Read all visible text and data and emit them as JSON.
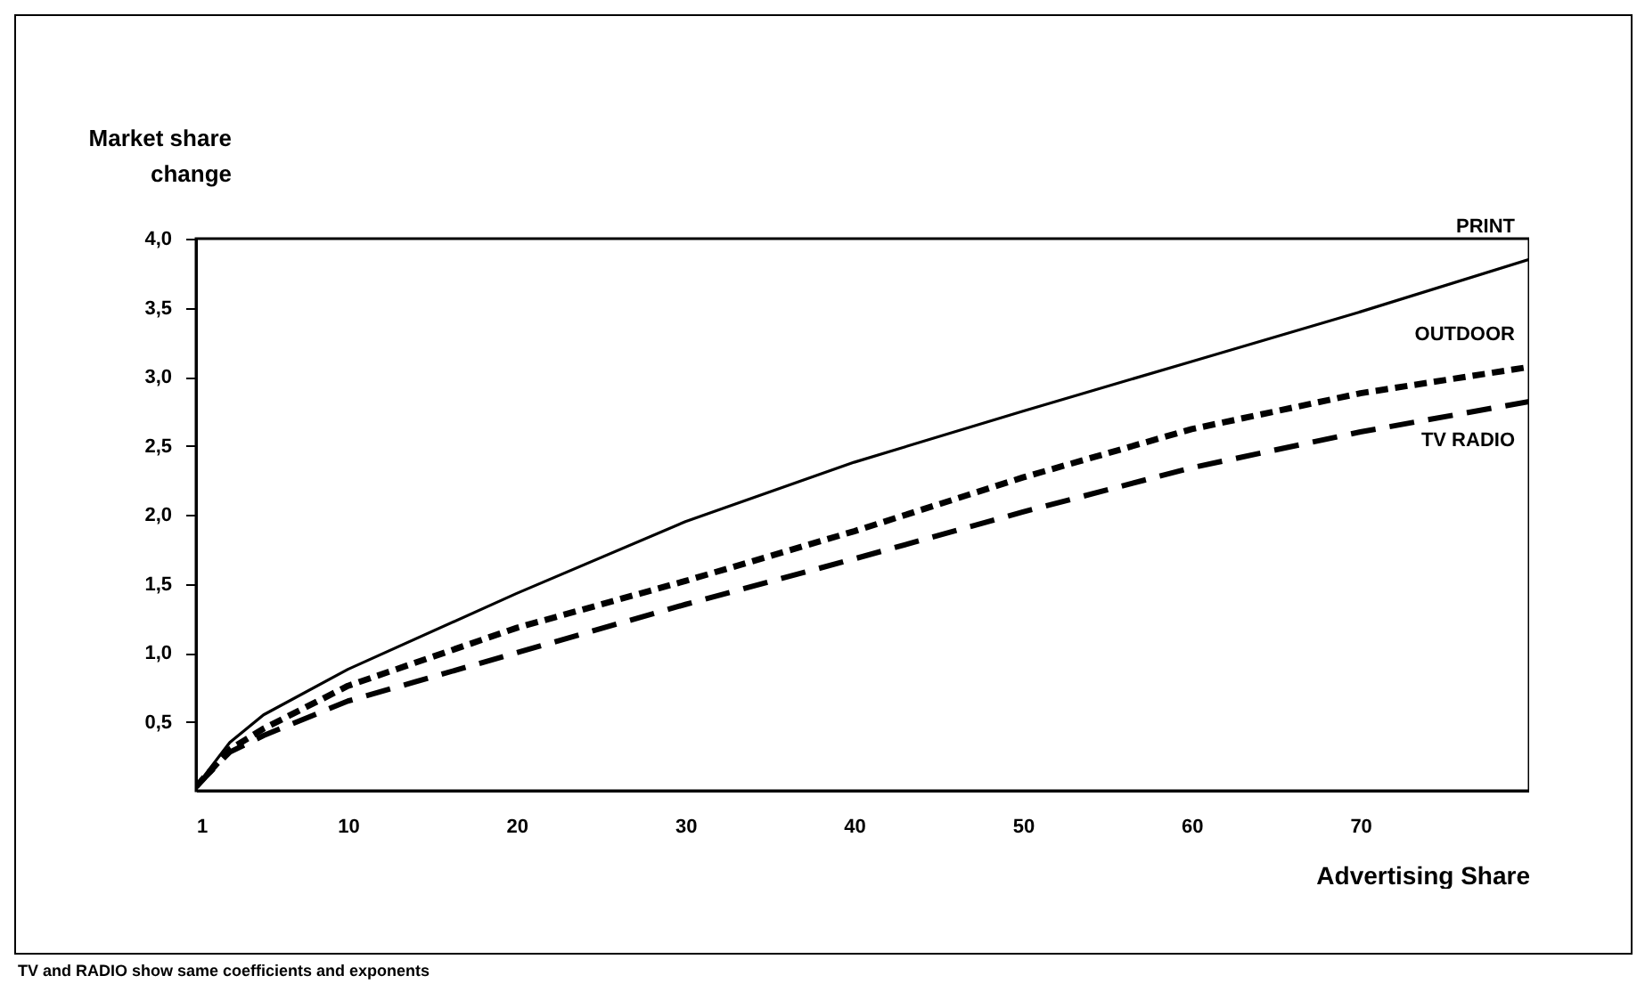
{
  "chart_data": {
    "type": "line",
    "xlabel": "Advertising Share",
    "ylabel": "Market share change",
    "x": [
      1,
      3,
      5,
      10,
      20,
      30,
      40,
      50,
      60,
      70,
      80
    ],
    "series": [
      {
        "name": "PRINT",
        "color": "#000000",
        "line_style": "solid",
        "values": [
          0.03,
          0.35,
          0.55,
          0.88,
          1.43,
          1.95,
          2.38,
          2.75,
          3.11,
          3.47,
          3.85
        ]
      },
      {
        "name": "OUTDOOR",
        "color": "#000000",
        "line_style": "dashed",
        "values": [
          0.03,
          0.3,
          0.45,
          0.76,
          1.18,
          1.52,
          1.88,
          2.27,
          2.62,
          2.88,
          3.07
        ]
      },
      {
        "name": "TV  RADIO",
        "color": "#000000",
        "line_style": "dashed",
        "values": [
          0.03,
          0.28,
          0.4,
          0.65,
          1.0,
          1.35,
          1.68,
          2.02,
          2.34,
          2.6,
          2.82
        ]
      }
    ],
    "xlim": [
      1,
      80
    ],
    "xticks": [
      1,
      10,
      20,
      30,
      40,
      50,
      60,
      70
    ],
    "ylim": [
      0,
      4
    ],
    "yticks": [
      {
        "value": 0.5,
        "label": "0,5"
      },
      {
        "value": 1,
        "label": "1,0"
      },
      {
        "value": 1.5,
        "label": "1,5"
      },
      {
        "value": 2,
        "label": "2,0"
      },
      {
        "value": 2.5,
        "label": "2,5"
      },
      {
        "value": 3,
        "label": "3,0"
      },
      {
        "value": 3.5,
        "label": "3,5"
      },
      {
        "value": 4,
        "label": "4,0"
      }
    ],
    "grid": false,
    "legend": false,
    "marker": "none",
    "annotations": [
      "TV and RADIO show same coefficients and exponents"
    ]
  }
}
